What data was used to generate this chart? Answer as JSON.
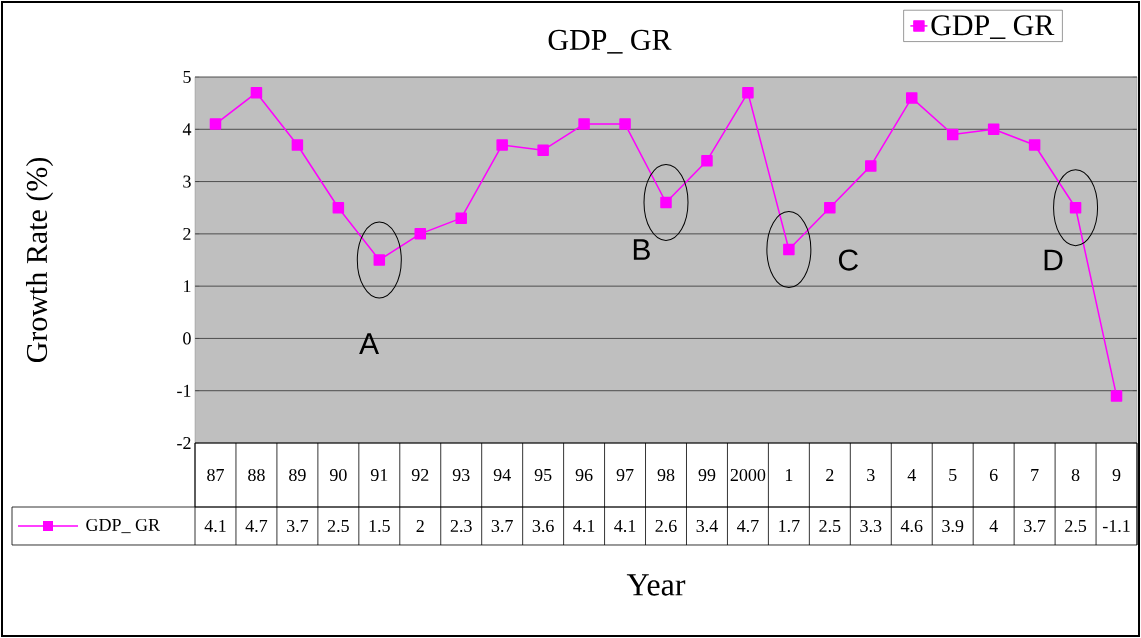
{
  "chart_data": {
    "type": "line",
    "title": "GDP_ GR",
    "xlabel": "Year",
    "ylabel": "Growth Rate (%)",
    "categories": [
      "87",
      "88",
      "89",
      "90",
      "91",
      "92",
      "93",
      "94",
      "95",
      "96",
      "97",
      "98",
      "99",
      "2000",
      "1",
      "2",
      "3",
      "4",
      "5",
      "6",
      "7",
      "8",
      "9"
    ],
    "series": [
      {
        "name": "GDP_ GR",
        "color": "#ff00ff",
        "values": [
          4.1,
          4.7,
          3.7,
          2.5,
          1.5,
          2,
          2.3,
          3.7,
          3.6,
          4.1,
          4.1,
          2.6,
          3.4,
          4.7,
          1.7,
          2.5,
          3.3,
          4.6,
          3.9,
          4,
          3.7,
          2.5,
          -1.1
        ]
      }
    ],
    "ylim": [
      -2,
      5
    ],
    "yticks": [
      -2,
      -1,
      0,
      1,
      2,
      3,
      4,
      5
    ],
    "grid": "y",
    "legend": "top right",
    "marker": "square",
    "line_style": "solid",
    "data_labels": true,
    "annotations": [
      {
        "text": "A",
        "x": "91",
        "y": 1.5
      },
      {
        "text": "B",
        "x": "98",
        "y": 2.6
      },
      {
        "text": "C",
        "x": "1",
        "y": 1.7
      },
      {
        "text": "D",
        "x": "8",
        "y": 2.5
      }
    ]
  }
}
